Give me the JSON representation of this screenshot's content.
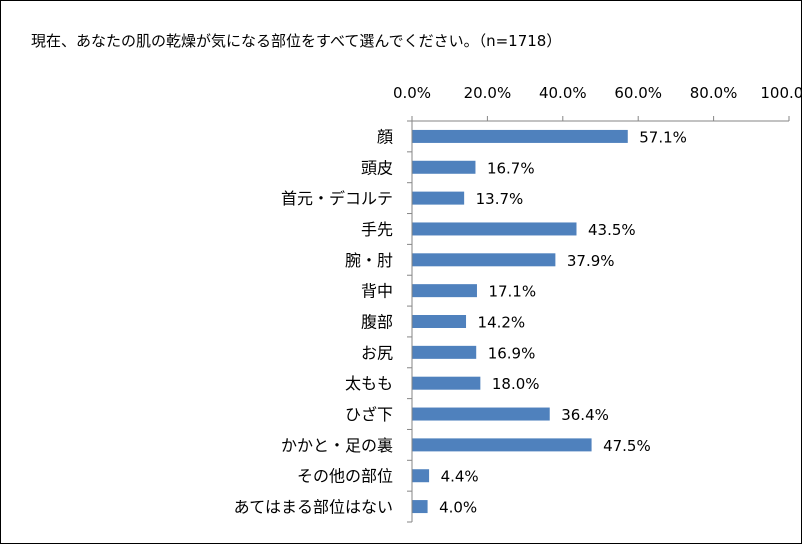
{
  "chart_data": {
    "type": "bar",
    "orientation": "horizontal",
    "title": "現在、あなたの肌の乾燥が気になる部位をすべて選んでください。（n=1718）",
    "categories": [
      "顔",
      "頭皮",
      "首元・デコルテ",
      "手先",
      "腕・肘",
      "背中",
      "腹部",
      "お尻",
      "太もも",
      "ひざ下",
      "かかと・足の裏",
      "その他の部位",
      "あてはまる部位はない"
    ],
    "values": [
      57.1,
      16.7,
      13.7,
      43.5,
      37.9,
      17.1,
      14.2,
      16.9,
      18.0,
      36.4,
      47.5,
      4.4,
      4.0
    ],
    "data_labels": [
      "57.1%",
      "16.7%",
      "13.7%",
      "43.5%",
      "37.9%",
      "17.1%",
      "14.2%",
      "16.9%",
      "18.0%",
      "36.4%",
      "47.5%",
      "4.4%",
      "4.0%"
    ],
    "x_ticks": [
      0,
      20,
      40,
      60,
      80,
      100
    ],
    "x_tick_labels": [
      "0.0%",
      "20.0%",
      "40.0%",
      "60.0%",
      "80.0%",
      "100.0%"
    ],
    "xlim": [
      0,
      100
    ],
    "axis_position": "top",
    "grid": false,
    "legend": "none",
    "bar_color": "#4f81bd"
  }
}
